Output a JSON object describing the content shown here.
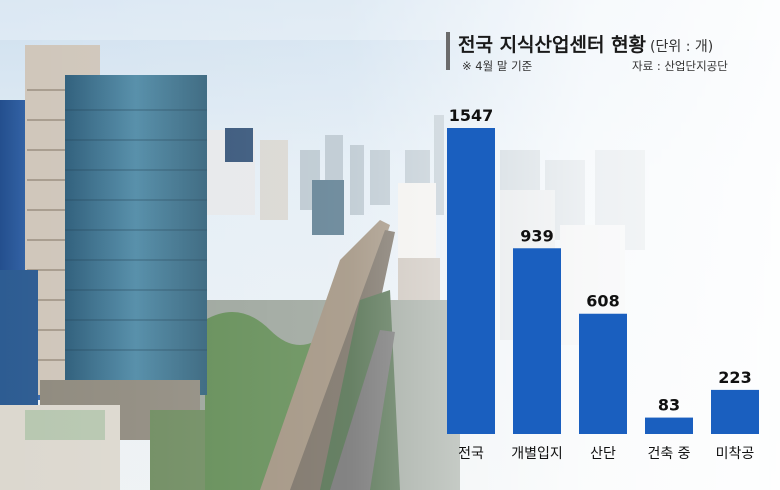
{
  "header": {
    "title": "전국 지식산업센터 현황",
    "unit": "(단위 : 개)",
    "note": "※ 4월 말 기준",
    "source": "자료 : 산업단지공단"
  },
  "chart_data": {
    "type": "bar",
    "categories": [
      "전국",
      "개별입지",
      "산단",
      "건축 중",
      "미착공"
    ],
    "values": [
      1547,
      939,
      608,
      83,
      223
    ],
    "value_labels": [
      "1547",
      "939",
      "608",
      "83",
      "223"
    ],
    "title": "전국 지식산업센터 현황",
    "xlabel": "",
    "ylabel": "",
    "ylim": [
      0,
      1547
    ],
    "grid": false,
    "bar_color": "#1a5fbf"
  }
}
